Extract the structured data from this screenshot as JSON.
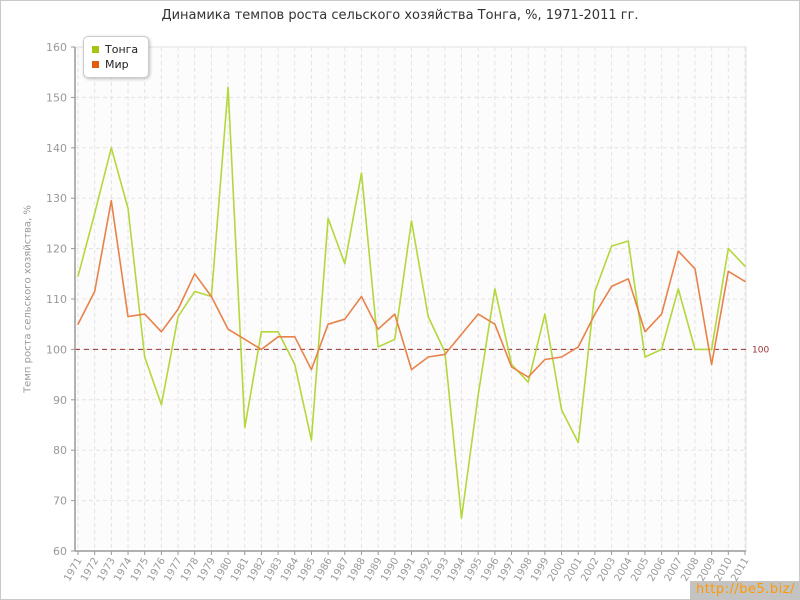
{
  "watermark": "http://be5.biz/",
  "chart_data": {
    "type": "line",
    "title": "Динамика темпов роста сельского хозяйства Тонга, %, 1971-2011 гг.",
    "xlabel": "",
    "ylabel": "Темп роста сельского хозяйства, %",
    "ylim": [
      60,
      160
    ],
    "ytick_step": 10,
    "grid": true,
    "grid_style": "dashed",
    "legend_position": "top-left",
    "reference_line": {
      "value": 100,
      "label": "100",
      "color": "#993333"
    },
    "categories": [
      1971,
      1972,
      1973,
      1974,
      1975,
      1976,
      1977,
      1978,
      1979,
      1980,
      1981,
      1982,
      1983,
      1984,
      1985,
      1986,
      1987,
      1988,
      1989,
      1990,
      1991,
      1992,
      1993,
      1994,
      1995,
      1996,
      1997,
      1998,
      1999,
      2000,
      2001,
      2002,
      2003,
      2004,
      2005,
      2006,
      2007,
      2008,
      2009,
      2010,
      2011
    ],
    "series": [
      {
        "name": "Тонга",
        "color": "#b4d73c",
        "marker_color": "#a3c614",
        "values": [
          114.5,
          127,
          140,
          128,
          98.5,
          89,
          106.5,
          111.5,
          110.5,
          152,
          84.5,
          103.5,
          103.5,
          97,
          82,
          126,
          117,
          135,
          100.5,
          102,
          125.5,
          106.5,
          99.5,
          66.5,
          91,
          112,
          97,
          93.5,
          107,
          88,
          81.5,
          111.5,
          120.5,
          121.5,
          98.5,
          100,
          112,
          100,
          100,
          120,
          116.5
        ]
      },
      {
        "name": "Мир",
        "color": "#e8824a",
        "marker_color": "#e25b0e",
        "values": [
          105,
          111.5,
          129.5,
          106.5,
          107,
          103.5,
          108,
          115,
          110.5,
          104,
          102,
          100,
          102.5,
          102.5,
          96,
          105,
          106,
          110.5,
          104,
          107,
          96,
          98.5,
          99,
          103,
          107,
          105,
          96.5,
          94.5,
          98,
          98.5,
          100.5,
          107,
          112.5,
          114,
          103.5,
          107,
          119.5,
          116,
          97,
          115.5,
          113.5
        ]
      }
    ]
  }
}
